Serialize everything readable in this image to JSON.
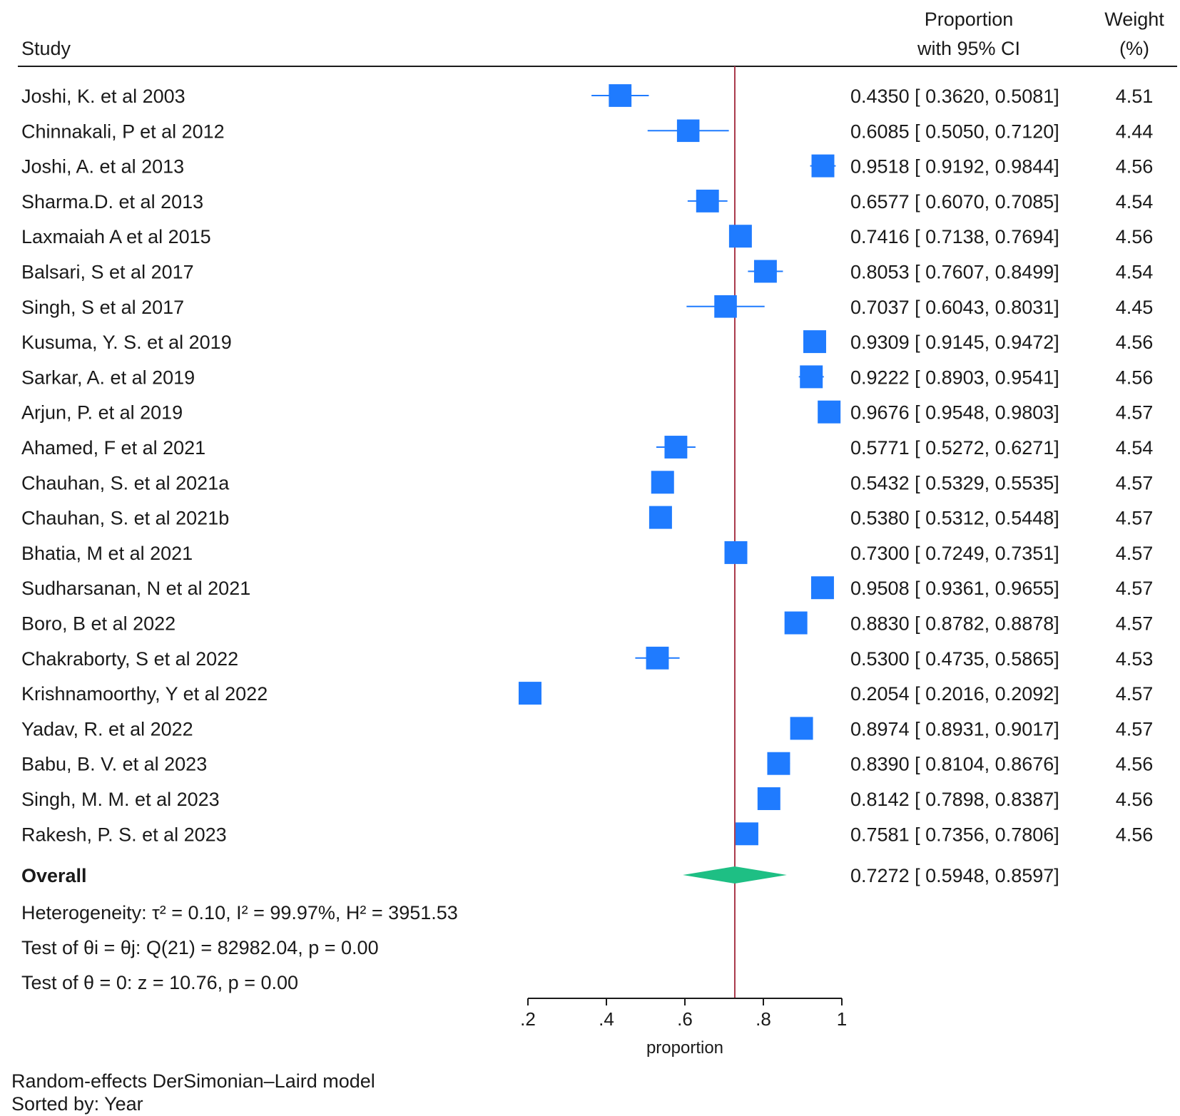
{
  "chart_data": {
    "type": "forest",
    "header": {
      "study": "Study",
      "ci_line1": "Proportion",
      "ci_line2": "with 95% CI",
      "weight_line1": "Weight",
      "weight_line2": "(%)"
    },
    "studies": [
      {
        "name": "Joshi, K. et al 2003",
        "est": 0.435,
        "lo": 0.362,
        "hi": 0.5081,
        "weight": 4.51,
        "ci_text": "0.4350 [ 0.3620,  0.5081]",
        "weight_text": "4.51"
      },
      {
        "name": "Chinnakali, P et al 2012",
        "est": 0.6085,
        "lo": 0.505,
        "hi": 0.712,
        "weight": 4.44,
        "ci_text": "0.6085 [ 0.5050,  0.7120]",
        "weight_text": "4.44"
      },
      {
        "name": "Joshi, A. et al 2013",
        "est": 0.9518,
        "lo": 0.9192,
        "hi": 0.9844,
        "weight": 4.56,
        "ci_text": "0.9518 [ 0.9192,  0.9844]",
        "weight_text": "4.56"
      },
      {
        "name": "Sharma.D. et al 2013",
        "est": 0.6577,
        "lo": 0.607,
        "hi": 0.7085,
        "weight": 4.54,
        "ci_text": "0.6577 [ 0.6070,  0.7085]",
        "weight_text": "4.54"
      },
      {
        "name": "Laxmaiah A et al 2015",
        "est": 0.7416,
        "lo": 0.7138,
        "hi": 0.7694,
        "weight": 4.56,
        "ci_text": "0.7416 [ 0.7138,  0.7694]",
        "weight_text": "4.56"
      },
      {
        "name": "Balsari, S et al 2017",
        "est": 0.8053,
        "lo": 0.7607,
        "hi": 0.8499,
        "weight": 4.54,
        "ci_text": "0.8053 [ 0.7607,  0.8499]",
        "weight_text": "4.54"
      },
      {
        "name": "Singh, S et al 2017",
        "est": 0.7037,
        "lo": 0.6043,
        "hi": 0.8031,
        "weight": 4.45,
        "ci_text": "0.7037 [ 0.6043,  0.8031]",
        "weight_text": "4.45"
      },
      {
        "name": "Kusuma, Y. S. et al 2019",
        "est": 0.9309,
        "lo": 0.9145,
        "hi": 0.9472,
        "weight": 4.56,
        "ci_text": "0.9309 [ 0.9145,  0.9472]",
        "weight_text": "4.56"
      },
      {
        "name": "Sarkar, A. et al 2019",
        "est": 0.9222,
        "lo": 0.8903,
        "hi": 0.9541,
        "weight": 4.56,
        "ci_text": "0.9222 [ 0.8903,  0.9541]",
        "weight_text": "4.56"
      },
      {
        "name": "Arjun, P. et al 2019",
        "est": 0.9676,
        "lo": 0.9548,
        "hi": 0.9803,
        "weight": 4.57,
        "ci_text": "0.9676 [ 0.9548,  0.9803]",
        "weight_text": "4.57"
      },
      {
        "name": "Ahamed, F et al 2021",
        "est": 0.5771,
        "lo": 0.5272,
        "hi": 0.6271,
        "weight": 4.54,
        "ci_text": "0.5771 [ 0.5272,  0.6271]",
        "weight_text": "4.54"
      },
      {
        "name": "Chauhan, S. et al 2021a",
        "est": 0.5432,
        "lo": 0.5329,
        "hi": 0.5535,
        "weight": 4.57,
        "ci_text": "0.5432 [ 0.5329,  0.5535]",
        "weight_text": "4.57"
      },
      {
        "name": "Chauhan, S. et al 2021b",
        "est": 0.538,
        "lo": 0.5312,
        "hi": 0.5448,
        "weight": 4.57,
        "ci_text": "0.5380 [ 0.5312,  0.5448]",
        "weight_text": "4.57"
      },
      {
        "name": "Bhatia, M et al 2021",
        "est": 0.73,
        "lo": 0.7249,
        "hi": 0.7351,
        "weight": 4.57,
        "ci_text": "0.7300 [ 0.7249,  0.7351]",
        "weight_text": "4.57"
      },
      {
        "name": "Sudharsanan, N et al 2021",
        "est": 0.9508,
        "lo": 0.9361,
        "hi": 0.9655,
        "weight": 4.57,
        "ci_text": "0.9508 [ 0.9361,  0.9655]",
        "weight_text": "4.57"
      },
      {
        "name": "Boro, B et al 2022",
        "est": 0.883,
        "lo": 0.8782,
        "hi": 0.8878,
        "weight": 4.57,
        "ci_text": "0.8830 [ 0.8782,  0.8878]",
        "weight_text": "4.57"
      },
      {
        "name": "Chakraborty, S et al 2022",
        "est": 0.53,
        "lo": 0.4735,
        "hi": 0.5865,
        "weight": 4.53,
        "ci_text": "0.5300 [ 0.4735,  0.5865]",
        "weight_text": "4.53"
      },
      {
        "name": "Krishnamoorthy, Y et al 2022",
        "est": 0.2054,
        "lo": 0.2016,
        "hi": 0.2092,
        "weight": 4.57,
        "ci_text": "0.2054 [ 0.2016,  0.2092]",
        "weight_text": "4.57"
      },
      {
        "name": "Yadav, R. et al 2022",
        "est": 0.8974,
        "lo": 0.8931,
        "hi": 0.9017,
        "weight": 4.57,
        "ci_text": "0.8974 [ 0.8931,  0.9017]",
        "weight_text": "4.57"
      },
      {
        "name": "Babu, B. V. et al 2023",
        "est": 0.839,
        "lo": 0.8104,
        "hi": 0.8676,
        "weight": 4.56,
        "ci_text": "0.8390 [ 0.8104,  0.8676]",
        "weight_text": "4.56"
      },
      {
        "name": "Singh, M. M. et al 2023",
        "est": 0.8142,
        "lo": 0.7898,
        "hi": 0.8387,
        "weight": 4.56,
        "ci_text": "0.8142 [ 0.7898,  0.8387]",
        "weight_text": "4.56"
      },
      {
        "name": "Rakesh, P. S. et al 2023",
        "est": 0.7581,
        "lo": 0.7356,
        "hi": 0.7806,
        "weight": 4.56,
        "ci_text": "0.7581 [ 0.7356,  0.7806]",
        "weight_text": "4.56"
      }
    ],
    "overall": {
      "label": "Overall",
      "est": 0.7272,
      "lo": 0.5948,
      "hi": 0.8597,
      "ci_text": "0.7272 [ 0.5948,  0.8597]"
    },
    "stats": {
      "heterogeneity": "Heterogeneity: τ² = 0.10, I² = 99.97%, H² = 3951.53",
      "test_equal": "Test of θi = θj: Q(21) = 82982.04, p = 0.00",
      "test_zero": "Test of θ = 0: z = 10.76, p = 0.00"
    },
    "x_axis": {
      "label": "proportion",
      "range": [
        0.2,
        1.0
      ],
      "ticks": [
        0.2,
        0.4,
        0.6,
        0.8,
        1.0
      ],
      "tick_labels": [
        ".2",
        ".4",
        ".6",
        ".8",
        "1"
      ]
    },
    "footnote": [
      "Random-effects DerSimonian–Laird model",
      "Sorted by: Year"
    ],
    "colors": {
      "marker": "#1f7bff",
      "ci_line": "#1f7bff",
      "diamond": "#1ebf84",
      "reference_line": "#a8384a",
      "text": "#1a1a1a"
    }
  }
}
